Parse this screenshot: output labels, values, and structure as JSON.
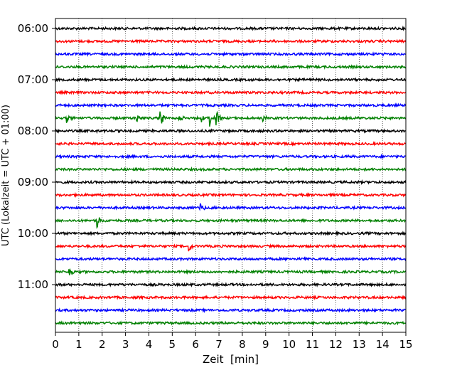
{
  "chart_data": {
    "type": "line",
    "title": "",
    "xlabel": "Zeit  [min]",
    "ylabel": "UTC (Lokalzeit = UTC + 01:00)",
    "xlim": [
      0,
      15
    ],
    "x_ticks": [
      0,
      1,
      2,
      3,
      4,
      5,
      6,
      7,
      8,
      9,
      10,
      11,
      12,
      13,
      14,
      15
    ],
    "x_tick_labels": [
      "0",
      "1",
      "2",
      "3",
      "4",
      "5",
      "6",
      "7",
      "8",
      "9",
      "10",
      "11",
      "12",
      "13",
      "14",
      "15"
    ],
    "y_tick_labels": [
      "06:00",
      "07:00",
      "08:00",
      "09:00",
      "10:00",
      "11:00"
    ],
    "grid": "vertical dotted",
    "legend": "none",
    "trace_colors": [
      "#000000",
      "#ff0000",
      "#0000ff",
      "#008000"
    ],
    "trace_interval_min": 15,
    "traces": [
      {
        "start": "06:00",
        "color": "#000000",
        "events": []
      },
      {
        "start": "06:15",
        "color": "#ff0000",
        "events": []
      },
      {
        "start": "06:30",
        "color": "#0000ff",
        "events": [
          {
            "t": 14.0,
            "amp": 0.15
          }
        ]
      },
      {
        "start": "06:45",
        "color": "#008000",
        "events": []
      },
      {
        "start": "07:00",
        "color": "#000000",
        "events": []
      },
      {
        "start": "07:15",
        "color": "#ff0000",
        "events": []
      },
      {
        "start": "07:30",
        "color": "#0000ff",
        "events": []
      },
      {
        "start": "07:45",
        "color": "#008000",
        "events": [
          {
            "t": 0.5,
            "amp": 0.4
          },
          {
            "t": 3.4,
            "amp": 1.0
          },
          {
            "t": 4.5,
            "amp": 1.0
          },
          {
            "t": 5.3,
            "amp": 0.3
          },
          {
            "t": 6.2,
            "amp": 0.5
          },
          {
            "t": 6.6,
            "amp": 0.8
          },
          {
            "t": 6.9,
            "amp": 0.8
          },
          {
            "t": 8.9,
            "amp": 0.3
          }
        ]
      },
      {
        "start": "08:00",
        "color": "#000000",
        "events": [
          {
            "t": 1.8,
            "amp": 0.15
          }
        ]
      },
      {
        "start": "08:15",
        "color": "#ff0000",
        "events": []
      },
      {
        "start": "08:30",
        "color": "#0000ff",
        "events": []
      },
      {
        "start": "08:45",
        "color": "#008000",
        "events": []
      },
      {
        "start": "09:00",
        "color": "#000000",
        "events": []
      },
      {
        "start": "09:15",
        "color": "#ff0000",
        "events": []
      },
      {
        "start": "09:30",
        "color": "#0000ff",
        "events": [
          {
            "t": 6.2,
            "amp": 0.55
          }
        ]
      },
      {
        "start": "09:45",
        "color": "#008000",
        "events": [
          {
            "t": 1.8,
            "amp": 0.65
          }
        ]
      },
      {
        "start": "10:00",
        "color": "#000000",
        "events": []
      },
      {
        "start": "10:15",
        "color": "#ff0000",
        "events": [
          {
            "t": 5.7,
            "amp": 0.6
          }
        ]
      },
      {
        "start": "10:30",
        "color": "#0000ff",
        "events": [
          {
            "t": 10.7,
            "amp": 0.15
          }
        ]
      },
      {
        "start": "10:45",
        "color": "#008000",
        "events": [
          {
            "t": 0.6,
            "amp": 0.4
          }
        ]
      },
      {
        "start": "11:00",
        "color": "#000000",
        "events": []
      },
      {
        "start": "11:15",
        "color": "#ff0000",
        "events": []
      },
      {
        "start": "11:30",
        "color": "#0000ff",
        "events": []
      },
      {
        "start": "11:45",
        "color": "#008000",
        "events": []
      }
    ]
  }
}
